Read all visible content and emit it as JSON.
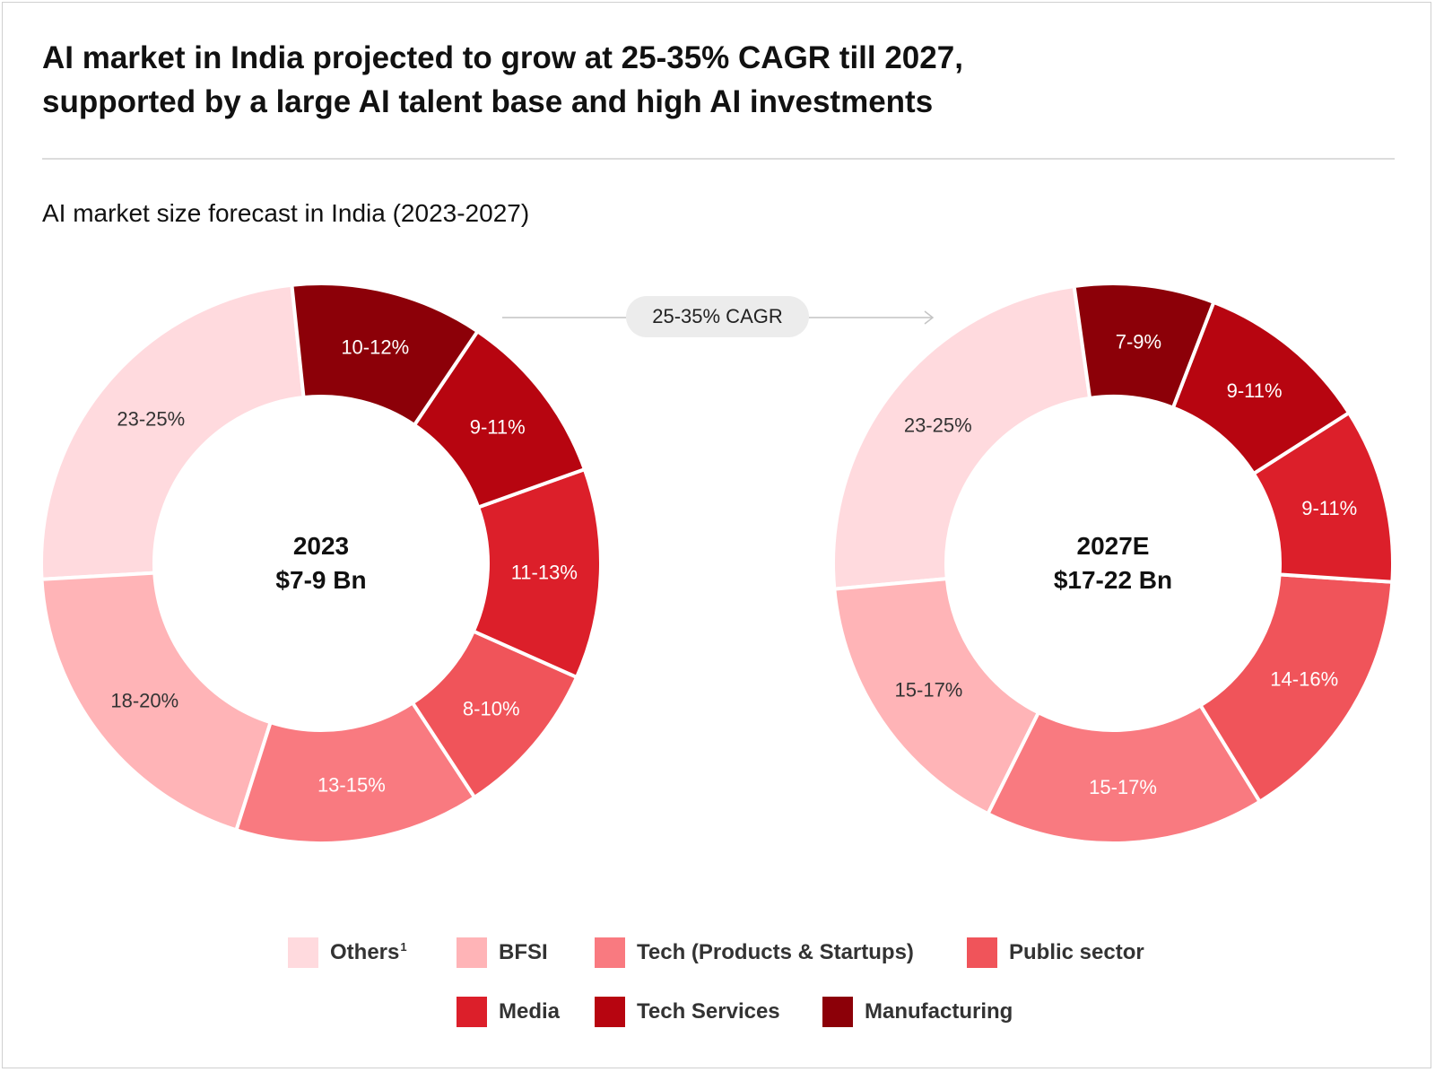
{
  "title_line1": "AI market in India projected to grow at 25-35% CAGR till 2027,",
  "title_line2": "supported by a large AI talent base and high AI investments",
  "subtitle": "AI market size forecast in India (2023-2027)",
  "cagr_label": "25-35% CAGR",
  "legend": [
    {
      "label": "Others",
      "sup": "1",
      "color": "#ffdade"
    },
    {
      "label": "BFSI",
      "sup": "",
      "color": "#ffb4b7"
    },
    {
      "label": "Tech (Products & Startups)",
      "sup": "",
      "color": "#f97a80"
    },
    {
      "label": "Public sector",
      "sup": "",
      "color": "#f0545a"
    },
    {
      "label": "Media",
      "sup": "",
      "color": "#dc1f2a"
    },
    {
      "label": "Tech Services",
      "sup": "",
      "color": "#b70510"
    },
    {
      "label": "Manufacturing",
      "sup": "",
      "color": "#8c0008"
    }
  ],
  "chart_data": [
    {
      "type": "pie",
      "center_line1": "2023",
      "center_line2": "$7-9 Bn",
      "categories": [
        "Others",
        "BFSI",
        "Tech (Products & Startups)",
        "Public sector",
        "Media",
        "Tech Services",
        "Manufacturing"
      ],
      "labels": [
        "23-25%",
        "18-20%",
        "13-15%",
        "8-10%",
        "11-13%",
        "9-11%",
        "10-12%"
      ],
      "values": [
        24,
        19,
        14,
        9,
        12,
        10,
        11
      ],
      "colors": [
        "#ffdade",
        "#ffb4b7",
        "#f97a80",
        "#f0545a",
        "#dc1f2a",
        "#b70510",
        "#8c0008"
      ]
    },
    {
      "type": "pie",
      "center_line1": "2027E",
      "center_line2": "$17-22 Bn",
      "categories": [
        "Others",
        "BFSI",
        "Tech (Products & Startups)",
        "Public sector",
        "Media",
        "Tech Services",
        "Manufacturing"
      ],
      "labels": [
        "23-25%",
        "15-17%",
        "15-17%",
        "14-16%",
        "9-11%",
        "9-11%",
        "7-9%"
      ],
      "values": [
        24,
        16,
        16,
        15,
        10,
        10,
        8
      ],
      "colors": [
        "#ffdade",
        "#ffb4b7",
        "#f97a80",
        "#f0545a",
        "#dc1f2a",
        "#b70510",
        "#8c0008"
      ]
    }
  ]
}
